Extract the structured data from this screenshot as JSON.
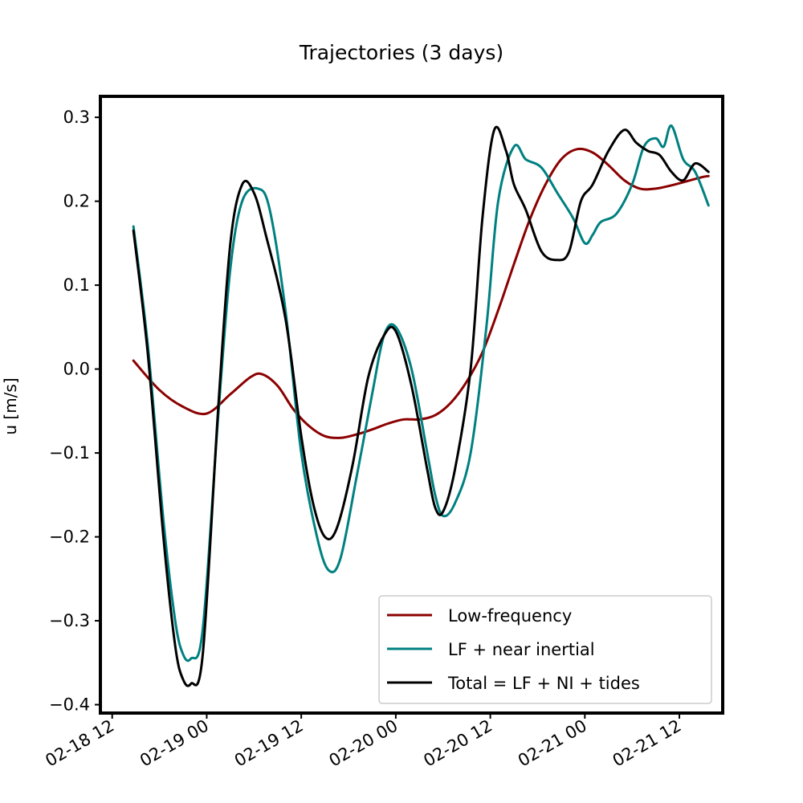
{
  "chart_data": {
    "type": "line",
    "title": "Trajectories (3 days)",
    "xlabel": "",
    "ylabel": "u [m/s]",
    "ylim": [
      -0.41,
      0.325
    ],
    "xlim": [
      "2018-02-18 10:30",
      "2018-02-21 17:30"
    ],
    "x_tick_values": [
      "2018-02-18 12:00",
      "2018-02-19 00:00",
      "2018-02-19 12:00",
      "2018-02-20 00:00",
      "2018-02-20 12:00",
      "2018-02-21 00:00",
      "2018-02-21 12:00"
    ],
    "x_tick_labels": [
      "02-18 12",
      "02-19 00",
      "02-19 12",
      "02-20 00",
      "02-20 12",
      "02-21 00",
      "02-21 12"
    ],
    "y_ticks": [
      -0.4,
      -0.3,
      -0.2,
      -0.1,
      0.0,
      0.1,
      0.2,
      0.3
    ],
    "y_tick_labels": [
      "−0.4",
      "−0.3",
      "−0.2",
      "−0.1",
      "0.0",
      "0.1",
      "0.2",
      "0.3"
    ],
    "grid": false,
    "legend_position": "bottom-right",
    "series": [
      {
        "name": "Low-frequency",
        "color": "#8b0000",
        "x": [
          "2018-02-18 14:42",
          "2018-02-18 18:00",
          "2018-02-18 21:00",
          "2018-02-19 00:00",
          "2018-02-19 03:00",
          "2018-02-19 05:30",
          "2018-02-19 07:00",
          "2018-02-19 09:00",
          "2018-02-19 11:00",
          "2018-02-19 13:00",
          "2018-02-19 15:00",
          "2018-02-19 17:00",
          "2018-02-19 19:00",
          "2018-02-19 21:00",
          "2018-02-19 23:00",
          "2018-02-20 01:00",
          "2018-02-20 03:00",
          "2018-02-20 05:00",
          "2018-02-20 07:00",
          "2018-02-20 09:00",
          "2018-02-20 11:00",
          "2018-02-20 13:00",
          "2018-02-20 15:00",
          "2018-02-20 17:00",
          "2018-02-20 19:00",
          "2018-02-20 21:00",
          "2018-02-20 23:00",
          "2018-02-21 01:00",
          "2018-02-21 03:00",
          "2018-02-21 05:00",
          "2018-02-21 07:00",
          "2018-02-21 09:00",
          "2018-02-21 11:00",
          "2018-02-21 13:00",
          "2018-02-21 15:00",
          "2018-02-21 15:42"
        ],
        "y": [
          0.01,
          -0.025,
          -0.045,
          -0.053,
          -0.03,
          -0.01,
          -0.006,
          -0.02,
          -0.048,
          -0.068,
          -0.08,
          -0.082,
          -0.078,
          -0.072,
          -0.065,
          -0.06,
          -0.06,
          -0.055,
          -0.04,
          -0.015,
          0.02,
          0.07,
          0.125,
          0.178,
          0.22,
          0.25,
          0.262,
          0.258,
          0.243,
          0.225,
          0.215,
          0.215,
          0.219,
          0.224,
          0.229,
          0.23
        ]
      },
      {
        "name": "LF + near inertial",
        "color": "#008080",
        "x": [
          "2018-02-18 14:42",
          "2018-02-18 16:30",
          "2018-02-18 18:30",
          "2018-02-18 20:00",
          "2018-02-18 21:00",
          "2018-02-18 22:00",
          "2018-02-18 23:30",
          "2018-02-19 01:30",
          "2018-02-19 03:00",
          "2018-02-19 04:30",
          "2018-02-19 06:30",
          "2018-02-19 08:00",
          "2018-02-19 10:00",
          "2018-02-19 12:00",
          "2018-02-19 14:00",
          "2018-02-19 15:30",
          "2018-02-19 17:00",
          "2018-02-19 19:00",
          "2018-02-19 21:00",
          "2018-02-19 22:30",
          "2018-02-20 00:00",
          "2018-02-20 02:00",
          "2018-02-20 04:00",
          "2018-02-20 05:00",
          "2018-02-20 06:00",
          "2018-02-20 07:30",
          "2018-02-20 09:30",
          "2018-02-20 11:30",
          "2018-02-20 13:00",
          "2018-02-20 15:00",
          "2018-02-20 16:30",
          "2018-02-20 18:30",
          "2018-02-20 20:30",
          "2018-02-20 22:30",
          "2018-02-21 00:00",
          "2018-02-21 01:00",
          "2018-02-21 02:00",
          "2018-02-21 04:00",
          "2018-02-21 06:00",
          "2018-02-21 07:30",
          "2018-02-21 09:00",
          "2018-02-21 10:00",
          "2018-02-21 11:00",
          "2018-02-21 12:30",
          "2018-02-21 14:00",
          "2018-02-21 15:42"
        ],
        "y": [
          0.17,
          0.03,
          -0.18,
          -0.3,
          -0.34,
          -0.345,
          -0.31,
          -0.05,
          0.12,
          0.2,
          0.215,
          0.19,
          0.07,
          -0.1,
          -0.2,
          -0.24,
          -0.225,
          -0.13,
          -0.03,
          0.04,
          0.05,
          0.0,
          -0.1,
          -0.15,
          -0.175,
          -0.16,
          -0.1,
          0.05,
          0.2,
          0.265,
          0.25,
          0.24,
          0.21,
          0.18,
          0.15,
          0.16,
          0.175,
          0.185,
          0.22,
          0.265,
          0.275,
          0.265,
          0.29,
          0.25,
          0.235,
          0.195
        ]
      },
      {
        "name": "Total = LF + NI + tides",
        "color": "#000000",
        "x": [
          "2018-02-18 14:42",
          "2018-02-18 16:30",
          "2018-02-18 18:30",
          "2018-02-18 20:00",
          "2018-02-18 21:00",
          "2018-02-18 22:00",
          "2018-02-18 23:30",
          "2018-02-19 01:30",
          "2018-02-19 03:00",
          "2018-02-19 04:30",
          "2018-02-19 06:00",
          "2018-02-19 07:30",
          "2018-02-19 10:00",
          "2018-02-19 12:00",
          "2018-02-19 13:30",
          "2018-02-19 15:00",
          "2018-02-19 16:30",
          "2018-02-19 18:30",
          "2018-02-19 20:30",
          "2018-02-19 22:30",
          "2018-02-20 00:00",
          "2018-02-20 02:00",
          "2018-02-20 04:00",
          "2018-02-20 05:00",
          "2018-02-20 06:00",
          "2018-02-20 07:30",
          "2018-02-20 09:30",
          "2018-02-20 11:00",
          "2018-02-20 12:30",
          "2018-02-20 14:00",
          "2018-02-20 15:00",
          "2018-02-20 16:30",
          "2018-02-20 18:30",
          "2018-02-20 20:30",
          "2018-02-20 22:00",
          "2018-02-20 23:30",
          "2018-02-21 01:00",
          "2018-02-21 03:00",
          "2018-02-21 05:00",
          "2018-02-21 06:30",
          "2018-02-21 08:00",
          "2018-02-21 09:30",
          "2018-02-21 11:00",
          "2018-02-21 12:30",
          "2018-02-21 14:00",
          "2018-02-21 15:42"
        ],
        "y": [
          0.165,
          0.02,
          -0.2,
          -0.33,
          -0.37,
          -0.375,
          -0.34,
          -0.04,
          0.15,
          0.22,
          0.21,
          0.16,
          0.06,
          -0.08,
          -0.16,
          -0.2,
          -0.19,
          -0.115,
          -0.01,
          0.04,
          0.045,
          -0.02,
          -0.12,
          -0.165,
          -0.17,
          -0.12,
          0.0,
          0.18,
          0.285,
          0.26,
          0.22,
          0.19,
          0.14,
          0.13,
          0.14,
          0.2,
          0.22,
          0.26,
          0.285,
          0.27,
          0.26,
          0.255,
          0.235,
          0.225,
          0.245,
          0.235
        ]
      }
    ]
  }
}
